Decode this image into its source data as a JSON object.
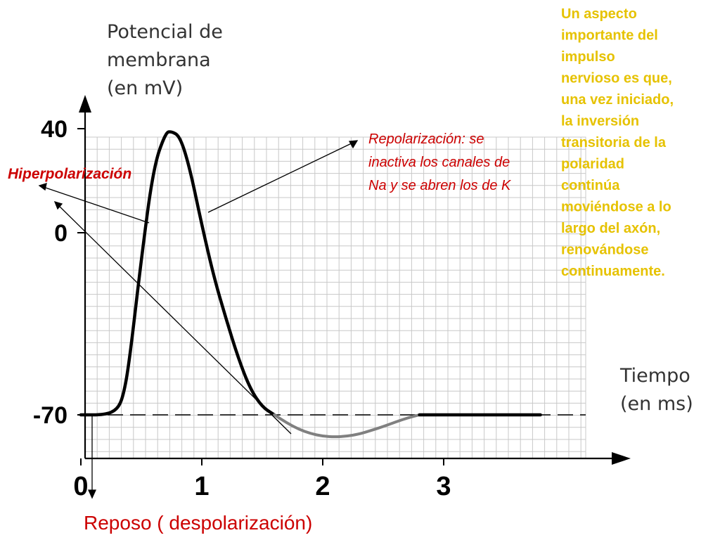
{
  "chart_data": {
    "type": "line",
    "ylabel": [
      "Potencial de",
      "membrana",
      "(en mV)"
    ],
    "xlabel": [
      "Tiempo",
      "(en ms)"
    ],
    "xlim": [
      0,
      4.1
    ],
    "ylim": [
      -85,
      57
    ],
    "x_ticks": [
      {
        "value": 0,
        "label": "0"
      },
      {
        "value": 1,
        "label": "1"
      },
      {
        "value": 2,
        "label": "2"
      },
      {
        "value": 3,
        "label": "3"
      }
    ],
    "y_ticks": [
      {
        "value": 40,
        "label": "40"
      },
      {
        "value": 0,
        "label": "0"
      },
      {
        "value": -70,
        "label": "-70"
      }
    ],
    "grid": true,
    "resting_potential": -70,
    "series": [
      {
        "segment": "action-potential",
        "color": "#000000",
        "x": [
          0,
          0.2,
          0.3,
          0.35,
          0.4,
          0.5,
          0.6,
          0.7,
          0.75,
          0.82,
          0.9,
          1.0,
          1.1,
          1.2,
          1.3,
          1.4,
          1.5,
          1.6
        ],
        "y": [
          -70,
          -70,
          -68,
          -63,
          -50,
          -10,
          25,
          38.5,
          39,
          37,
          25,
          3,
          -17,
          -33,
          -48,
          -60,
          -67,
          -70
        ]
      },
      {
        "segment": "after-hyperpolarization",
        "color": "#808080",
        "x": [
          1.6,
          1.7,
          1.8,
          1.9,
          2.0,
          2.1,
          2.2,
          2.3,
          2.4,
          2.5,
          2.6,
          2.7,
          2.8
        ],
        "y": [
          -70,
          -73,
          -75.5,
          -77.2,
          -78.2,
          -78.5,
          -78.2,
          -77.4,
          -76,
          -74.5,
          -72.8,
          -71.2,
          -70
        ]
      },
      {
        "segment": "return-to-rest",
        "color": "#000000",
        "x": [
          2.8,
          3.0,
          3.3,
          3.6,
          3.8
        ],
        "y": [
          -70,
          -70,
          -70,
          -70,
          -70
        ]
      }
    ],
    "annotations": {
      "repolarizacion": [
        "Repolarización: se",
        "inactiva los canales de",
        "Na y se abren los de K"
      ],
      "hiperpolarizacion": "Hiperpolarización",
      "reposo": "Reposo ( despolarización)",
      "side_note": [
        "Un aspecto",
        "importante del",
        "impulso",
        "nervioso es que,",
        "una vez iniciado,",
        "la inversión",
        "transitoria de la",
        "polaridad",
        "continúa",
        "moviéndose a lo",
        "largo del axón,",
        "renovándose",
        "continuamente."
      ]
    }
  }
}
